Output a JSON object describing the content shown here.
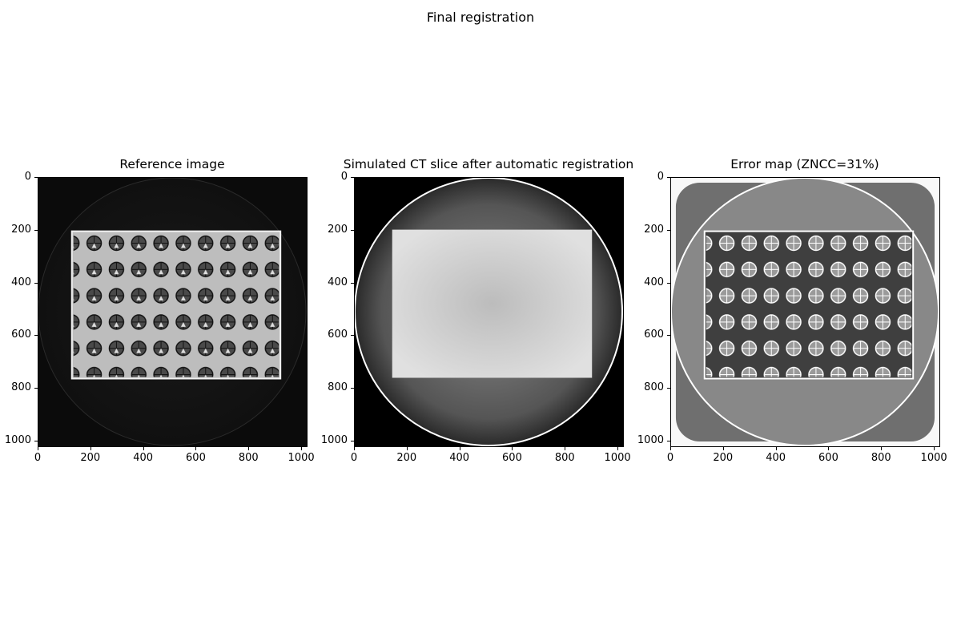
{
  "figure": {
    "suptitle": "Final registration"
  },
  "panels": [
    {
      "title": "Reference image"
    },
    {
      "title": "Simulated CT slice after automatic registration"
    },
    {
      "title": "Error map (ZNCC=31%)"
    }
  ],
  "axes": {
    "xticks": [
      "0",
      "200",
      "400",
      "600",
      "800",
      "1000"
    ],
    "yticks": [
      "0",
      "200",
      "400",
      "600",
      "800",
      "1000"
    ],
    "xticks_values": [
      0,
      200,
      400,
      600,
      800,
      1000
    ],
    "yticks_values": [
      0,
      200,
      400,
      600,
      800,
      1000
    ],
    "range": [
      0,
      1024
    ]
  }
}
